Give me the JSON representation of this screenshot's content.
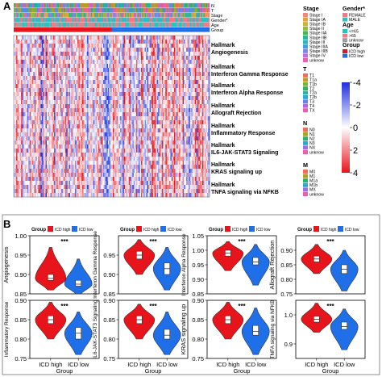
{
  "panel_a_label": "A",
  "panel_b_label": "B",
  "heatmap": {
    "annotation_rows": [
      "N",
      "T",
      "Stage",
      "Gender*",
      "Age",
      "Group"
    ],
    "pathways": [
      {
        "line1": "Hallmark",
        "line2": "Angiogenesis"
      },
      {
        "line1": "Hallmark",
        "line2": "Interferon Gamma Response"
      },
      {
        "line1": "Hallmark",
        "line2": "Interferon Alpha Response"
      },
      {
        "line1": "Hallmark",
        "line2": "Allograft Rejection"
      },
      {
        "line1": "Hallmark",
        "line2": "Inflammatory Response"
      },
      {
        "line1": "Hallmark",
        "line2": "IL6-JAK-STAT3 Signaling"
      },
      {
        "line1": "Hallmark",
        "line2": "KRAS signaling up"
      },
      {
        "line1": "Hallmark",
        "line2": "TNFA signaling via NFKB"
      }
    ],
    "colorbar": {
      "ticks": [
        "4",
        "2",
        "0",
        "-2",
        "-4"
      ],
      "low_color": "#e8141b",
      "mid_color": "#ffffff",
      "high_color": "#1f2ee0"
    }
  },
  "legends": {
    "stage": {
      "title": "Stage",
      "items": [
        {
          "label": "Stage I",
          "color": "#f08a7a"
        },
        {
          "label": "Stage IA",
          "color": "#e8a23c"
        },
        {
          "label": "Stage IB",
          "color": "#c9b62e"
        },
        {
          "label": "Stage II",
          "color": "#8fbf3a"
        },
        {
          "label": "Stage IIA",
          "color": "#46b84a"
        },
        {
          "label": "Stage IIB",
          "color": "#2fb58c"
        },
        {
          "label": "Stage III",
          "color": "#2ab3c4"
        },
        {
          "label": "Stage IIIA",
          "color": "#3aa0e6"
        },
        {
          "label": "Stage IIIB",
          "color": "#7a86ec"
        },
        {
          "label": "Stage IV",
          "color": "#c26ce0"
        },
        {
          "label": "unknow",
          "color": "#e85fb6"
        }
      ]
    },
    "gender": {
      "title": "Gender*",
      "items": [
        {
          "label": "FEMALE",
          "color": "#f27a86"
        },
        {
          "label": "MALE",
          "color": "#2cbfc5"
        }
      ]
    },
    "age": {
      "title": "Age",
      "items": [
        {
          "label": "<=65",
          "color": "#22c6c0"
        },
        {
          "label": ">65",
          "color": "#f47a85"
        },
        {
          "label": "unknow",
          "color": "#9aa0a6"
        }
      ]
    },
    "group": {
      "title": "Group",
      "items": [
        {
          "label": "ICD high",
          "color": "#e8141b"
        },
        {
          "label": "ICD low",
          "color": "#1f6fe8"
        }
      ]
    },
    "t": {
      "title": "T",
      "items": [
        {
          "label": "T1",
          "color": "#f16c5c"
        },
        {
          "label": "T1a",
          "color": "#c39a1e"
        },
        {
          "label": "T1b",
          "color": "#7bb33a"
        },
        {
          "label": "T2",
          "color": "#2fb25a"
        },
        {
          "label": "T2a",
          "color": "#24b7a2"
        },
        {
          "label": "T2b",
          "color": "#2aa6d9"
        },
        {
          "label": "T3",
          "color": "#6d7ef0"
        },
        {
          "label": "T4",
          "color": "#b761e6"
        },
        {
          "label": "TX",
          "color": "#e85faf"
        }
      ]
    },
    "n": {
      "title": "N",
      "items": [
        {
          "label": "N0",
          "color": "#f16c5c"
        },
        {
          "label": "N1",
          "color": "#a8a51f"
        },
        {
          "label": "N2",
          "color": "#25b56a"
        },
        {
          "label": "N3",
          "color": "#27a9d6"
        },
        {
          "label": "NX",
          "color": "#9a6fe6"
        },
        {
          "label": "unknow",
          "color": "#e85faf"
        }
      ]
    },
    "m": {
      "title": "M",
      "items": [
        {
          "label": "M0",
          "color": "#f16c5c"
        },
        {
          "label": "M1",
          "color": "#a8a51f"
        },
        {
          "label": "M1a",
          "color": "#25b56a"
        },
        {
          "label": "M1b",
          "color": "#27a9d6"
        },
        {
          "label": "MX",
          "color": "#9a6fe6"
        },
        {
          "label": "unknow",
          "color": "#e85faf"
        }
      ]
    }
  },
  "chart_data": {
    "type": "violin",
    "legend_title": "Group",
    "groups": [
      "ICD high",
      "ICD low"
    ],
    "colors": {
      "ICD high": "#e8141b",
      "ICD low": "#1f6fe8"
    },
    "xlabel": "Group",
    "panels": [
      {
        "ylabel": "Angiogenesis",
        "ylim": [
          0.85,
          1.0
        ],
        "ticks": [
          0.85,
          0.9,
          0.95,
          1.0
        ],
        "tick_labels": [
          "0.85",
          "0.90",
          "0.95",
          "1.00"
        ],
        "significance": "***",
        "high": {
          "min": 0.86,
          "q1": 0.885,
          "median": 0.89,
          "q3": 0.9,
          "max": 0.97
        },
        "low": {
          "min": 0.85,
          "q1": 0.87,
          "median": 0.875,
          "q3": 0.885,
          "max": 0.94
        }
      },
      {
        "ylabel": "Interferon Gamma Response",
        "ylim": [
          0.85,
          1.0
        ],
        "ticks": [
          0.85,
          0.9,
          0.95
        ],
        "tick_labels": [
          "0.85",
          "0.90",
          "0.95"
        ],
        "significance": "***",
        "high": {
          "min": 0.9,
          "q1": 0.94,
          "median": 0.95,
          "q3": 0.96,
          "max": 0.99
        },
        "low": {
          "min": 0.86,
          "q1": 0.9,
          "median": 0.915,
          "q3": 0.93,
          "max": 0.97
        }
      },
      {
        "ylabel": "Interferon Alpha Response",
        "ylim": [
          0.85,
          1.05
        ],
        "ticks": [
          0.85,
          0.9,
          0.95,
          1.0,
          1.05
        ],
        "tick_labels": [
          "0.85",
          "0.90",
          "0.95",
          "1.00",
          "1.05"
        ],
        "significance": "***",
        "high": {
          "min": 0.93,
          "q1": 0.98,
          "median": 0.99,
          "q3": 1.0,
          "max": 1.03
        },
        "low": {
          "min": 0.88,
          "q1": 0.95,
          "median": 0.96,
          "q3": 0.975,
          "max": 1.02
        }
      },
      {
        "ylabel": "Allograft Rejection",
        "ylim": [
          0.75,
          0.95
        ],
        "ticks": [
          0.75,
          0.8,
          0.85,
          0.9
        ],
        "tick_labels": [
          "0.75",
          "0.80",
          "0.85",
          "0.90"
        ],
        "significance": "***",
        "high": {
          "min": 0.82,
          "q1": 0.86,
          "median": 0.87,
          "q3": 0.88,
          "max": 0.92
        },
        "low": {
          "min": 0.76,
          "q1": 0.82,
          "median": 0.835,
          "q3": 0.85,
          "max": 0.9
        }
      },
      {
        "ylabel": "Inflammatory Response",
        "ylim": [
          0.75,
          0.9
        ],
        "ticks": [
          0.75,
          0.8,
          0.85,
          0.9
        ],
        "tick_labels": [
          "0.75",
          "0.80",
          "0.85",
          "0.90"
        ],
        "significance": "***",
        "high": {
          "min": 0.8,
          "q1": 0.84,
          "median": 0.85,
          "q3": 0.86,
          "max": 0.895
        },
        "low": {
          "min": 0.76,
          "q1": 0.8,
          "median": 0.815,
          "q3": 0.83,
          "max": 0.87
        }
      },
      {
        "ylabel": "IL6-JAK-STAT3 Signaling",
        "ylim": [
          0.75,
          0.9
        ],
        "ticks": [
          0.75,
          0.8,
          0.85,
          0.9
        ],
        "tick_labels": [
          "0.75",
          "0.80",
          "0.85",
          "0.90"
        ],
        "significance": "***",
        "high": {
          "min": 0.8,
          "q1": 0.84,
          "median": 0.85,
          "q3": 0.86,
          "max": 0.89
        },
        "low": {
          "min": 0.76,
          "q1": 0.8,
          "median": 0.81,
          "q3": 0.825,
          "max": 0.87
        }
      },
      {
        "ylabel": "KRAS signaling up",
        "ylim": [
          0.75,
          0.9
        ],
        "ticks": [
          0.75,
          0.8,
          0.85,
          0.9
        ],
        "tick_labels": [
          "0.75",
          "0.80",
          "0.85",
          "0.90"
        ],
        "significance": "***",
        "high": {
          "min": 0.8,
          "q1": 0.84,
          "median": 0.85,
          "q3": 0.86,
          "max": 0.895
        },
        "low": {
          "min": 0.76,
          "q1": 0.81,
          "median": 0.82,
          "q3": 0.835,
          "max": 0.88
        }
      },
      {
        "ylabel": "TNFA signaling via NFKB",
        "ylim": [
          0.85,
          1.05
        ],
        "ticks": [
          0.9,
          1.0
        ],
        "tick_labels": [
          "0.9",
          "1.0"
        ],
        "significance": "***",
        "high": {
          "min": 0.94,
          "q1": 0.975,
          "median": 0.985,
          "q3": 0.995,
          "max": 1.04
        },
        "low": {
          "min": 0.88,
          "q1": 0.95,
          "median": 0.96,
          "q3": 0.975,
          "max": 1.02
        }
      }
    ]
  }
}
